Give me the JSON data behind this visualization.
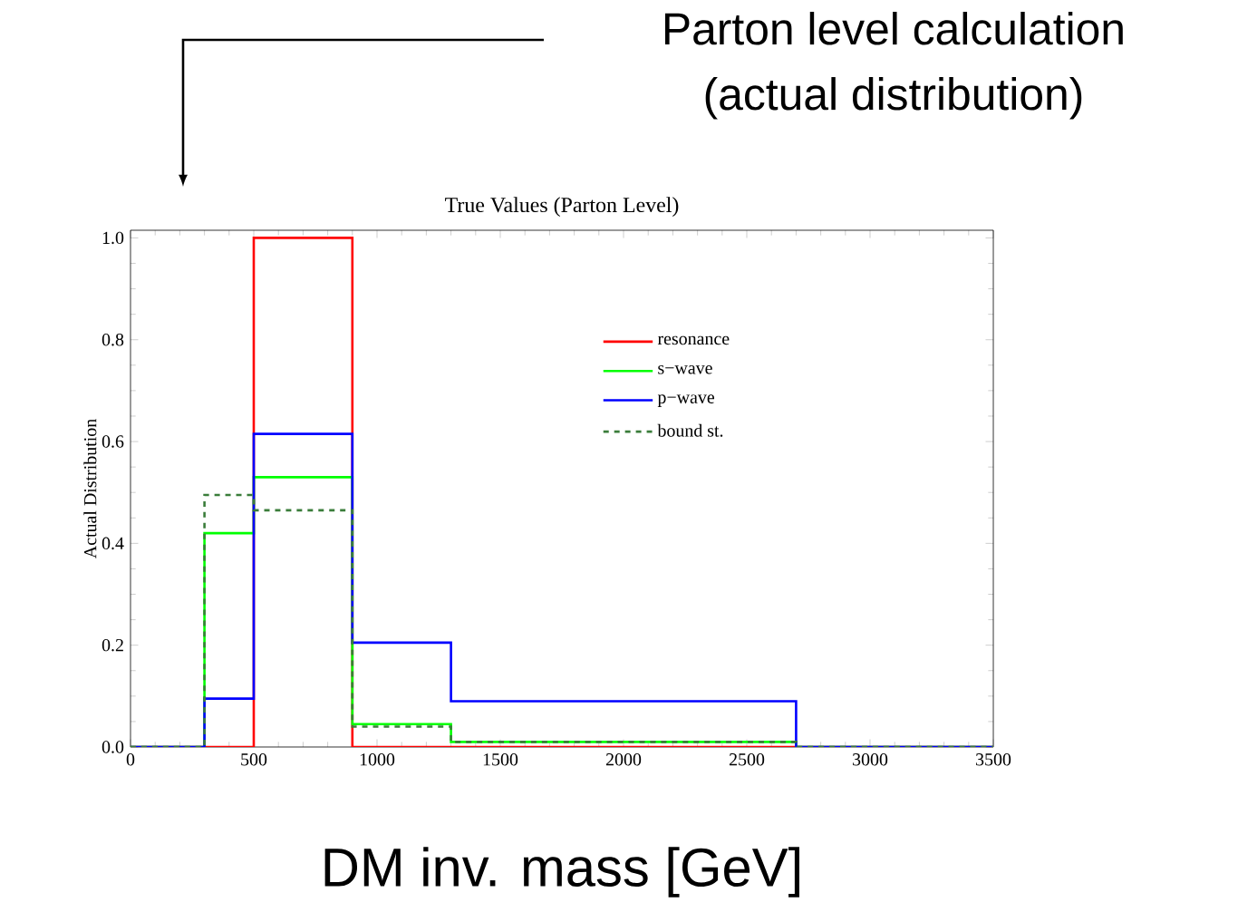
{
  "chart_data": {
    "type": "histogram",
    "title": "True Values (Parton Level)",
    "xlabel": "DM inv. mass [GeV]",
    "ylabel": "Actual Distribution",
    "annotations": [
      "Parton level calculation",
      "(actual distribution)"
    ],
    "bins": [
      0,
      300,
      500,
      900,
      1300,
      2700,
      3500
    ],
    "series": [
      {
        "name": "resonance",
        "color": "#ff0000",
        "line_style": "solid",
        "values": [
          0,
          0,
          1.0,
          0,
          0,
          0
        ]
      },
      {
        "name": "s−wave",
        "color": "#00ff00",
        "line_style": "solid",
        "values": [
          0,
          0.42,
          0.53,
          0.045,
          0.01,
          0
        ]
      },
      {
        "name": "p−wave",
        "color": "#0000ff",
        "line_style": "solid",
        "values": [
          0,
          0.095,
          0.615,
          0.205,
          0.09,
          0
        ]
      },
      {
        "name": "bound st.",
        "color": "#3a7d3a",
        "line_style": "dashed",
        "values": [
          0,
          0.495,
          0.465,
          0.04,
          0.01,
          0
        ]
      }
    ],
    "xlim": [
      0,
      3500
    ],
    "ylim": [
      0,
      1.015
    ],
    "xticks": [
      0,
      500,
      1000,
      1500,
      2000,
      2500,
      3000,
      3500
    ],
    "yticks": [
      {
        "value": 0,
        "label": "0.0"
      },
      0.2,
      0.4,
      0.6,
      0.8,
      {
        "value": 1.0,
        "label": "1.0"
      }
    ],
    "legend": "right",
    "grid": false
  }
}
